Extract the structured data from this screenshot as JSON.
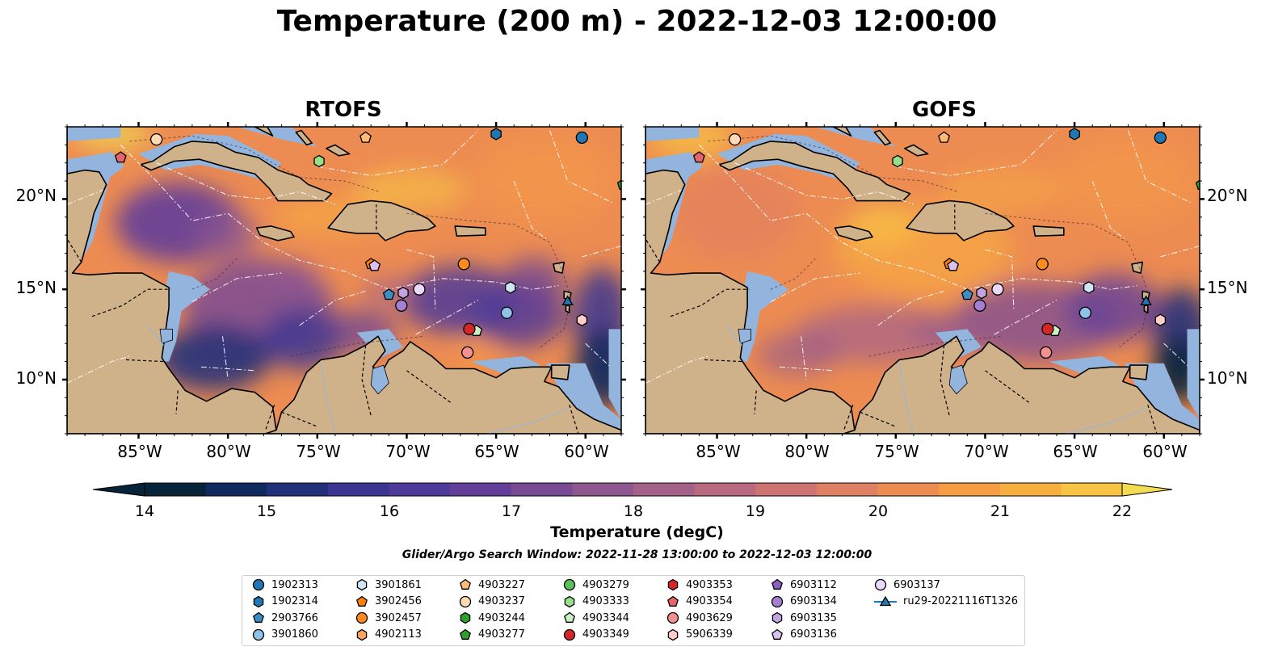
{
  "title": "Temperature (200 m) - 2022-12-03 12:00:00",
  "panels": [
    {
      "title": "RTOFS"
    },
    {
      "title": "GOFS"
    }
  ],
  "lon_ticks": [
    "85°W",
    "80°W",
    "75°W",
    "70°W",
    "65°W",
    "60°W"
  ],
  "lat_ticks": [
    "20°N",
    "15°N",
    "10°N"
  ],
  "map_extent": {
    "lon": [
      -89,
      -58
    ],
    "lat": [
      7,
      24
    ]
  },
  "colorbar": {
    "label": "Temperature (degC)",
    "ticks": [
      "14",
      "15",
      "16",
      "17",
      "18",
      "19",
      "20",
      "21",
      "22"
    ],
    "range": [
      14,
      22
    ],
    "colors": [
      "#06233a",
      "#0f2a5e",
      "#22307a",
      "#3a3592",
      "#4e3a99",
      "#633f9a",
      "#7a4a95",
      "#8f5790",
      "#a3618a",
      "#b96a80",
      "#cd7472",
      "#df7f63",
      "#ed8c52",
      "#f69c45",
      "#f9af40",
      "#f8c444",
      "#f1dc52"
    ]
  },
  "search_window": "Glider/Argo Search Window: 2022-11-28 13:00:00 to 2022-12-03 12:00:00",
  "legend": [
    {
      "label": "1902313",
      "marker": "circle",
      "color": "#1f77b4"
    },
    {
      "label": "1902314",
      "marker": "hexagon",
      "color": "#1f77b4"
    },
    {
      "label": "2903766",
      "marker": "pentagon",
      "color": "#3b8ec4"
    },
    {
      "label": "3901860",
      "marker": "circle",
      "color": "#8fc2e6"
    },
    {
      "label": "3901861",
      "marker": "hexagon",
      "color": "#cfe4f5"
    },
    {
      "label": "3902456",
      "marker": "pentagon",
      "color": "#ff7f0e"
    },
    {
      "label": "3902457",
      "marker": "circle",
      "color": "#ff8c1a"
    },
    {
      "label": "4902113",
      "marker": "hexagon",
      "color": "#ffa35c"
    },
    {
      "label": "4903227",
      "marker": "pentagon",
      "color": "#ffbb78"
    },
    {
      "label": "4903237",
      "marker": "circle",
      "color": "#ffd9b3"
    },
    {
      "label": "4903244",
      "marker": "hexagon",
      "color": "#2ca02c"
    },
    {
      "label": "4903277",
      "marker": "pentagon",
      "color": "#2ca02c"
    },
    {
      "label": "4903279",
      "marker": "circle",
      "color": "#5cc05c"
    },
    {
      "label": "4903333",
      "marker": "hexagon",
      "color": "#98df8a"
    },
    {
      "label": "4903344",
      "marker": "pentagon",
      "color": "#c8f0c0"
    },
    {
      "label": "4903349",
      "marker": "circle",
      "color": "#d62728"
    },
    {
      "label": "4903353",
      "marker": "hexagon",
      "color": "#d62728"
    },
    {
      "label": "4903354",
      "marker": "pentagon",
      "color": "#e5656a"
    },
    {
      "label": "4903629",
      "marker": "circle",
      "color": "#f4908e"
    },
    {
      "label": "5906339",
      "marker": "hexagon",
      "color": "#ffcdcb"
    },
    {
      "label": "6903112",
      "marker": "pentagon",
      "color": "#8c5fc0"
    },
    {
      "label": "6903134",
      "marker": "circle",
      "color": "#a680d0"
    },
    {
      "label": "6903135",
      "marker": "hexagon",
      "color": "#c2a5e0"
    },
    {
      "label": "6903136",
      "marker": "pentagon",
      "color": "#d9c2f0"
    },
    {
      "label": "6903137",
      "marker": "circle",
      "color": "#ead9fb"
    },
    {
      "label": "ru29-20221116T1326",
      "marker": "triangle-line",
      "color": "#1f77b4"
    }
  ],
  "platforms": [
    {
      "id": "1902313",
      "lon": -60.2,
      "lat": 23.4
    },
    {
      "id": "1902314",
      "lon": -65.0,
      "lat": 23.6
    },
    {
      "id": "2903766",
      "lon": -71.0,
      "lat": 14.7
    },
    {
      "id": "3901860",
      "lon": -64.4,
      "lat": 13.7
    },
    {
      "id": "3901861",
      "lon": -64.2,
      "lat": 15.1
    },
    {
      "id": "3902456",
      "lon": -72.0,
      "lat": 16.4
    },
    {
      "id": "3902457",
      "lon": -66.8,
      "lat": 16.4
    },
    {
      "id": "4903227",
      "lon": -72.3,
      "lat": 23.4
    },
    {
      "id": "4903237",
      "lon": -84.0,
      "lat": 23.3
    },
    {
      "id": "4903277",
      "lon": -57.9,
      "lat": 20.8
    },
    {
      "id": "4903333",
      "lon": -74.9,
      "lat": 22.1
    },
    {
      "id": "4903344",
      "lon": -66.1,
      "lat": 12.7
    },
    {
      "id": "4903349",
      "lon": -66.5,
      "lat": 12.8
    },
    {
      "id": "4903354",
      "lon": -86.0,
      "lat": 22.3
    },
    {
      "id": "4903629",
      "lon": -66.6,
      "lat": 11.5
    },
    {
      "id": "5906339",
      "lon": -60.2,
      "lat": 13.3
    },
    {
      "id": "6903134",
      "lon": -70.3,
      "lat": 14.1
    },
    {
      "id": "6903135",
      "lon": -70.2,
      "lat": 14.8
    },
    {
      "id": "6903136",
      "lon": -71.8,
      "lat": 16.3
    },
    {
      "id": "6903137",
      "lon": -69.3,
      "lat": 15.0
    },
    {
      "id": "ru29-20221116T1326",
      "lon": -61.0,
      "lat": 14.3
    }
  ]
}
